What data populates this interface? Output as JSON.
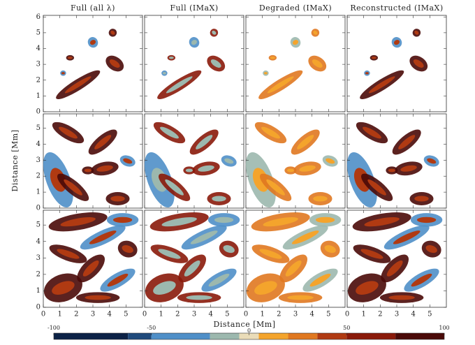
{
  "chart_data": {
    "type": "image-grid",
    "columns": [
      "Full (all λ)",
      "Full (IMaX)",
      "Degraded (IMaX)",
      "Reconstructed (IMaX)"
    ],
    "xlabel": "Distance [Mm]",
    "ylabel": "Distance [Mm]",
    "xlim": [
      0,
      6
    ],
    "xticks": [
      0,
      1,
      2,
      3,
      4,
      5
    ],
    "rows": [
      {
        "ylim": [
          0,
          6.1
        ],
        "yticks": [
          0,
          1,
          2,
          3,
          4,
          5,
          6
        ]
      },
      {
        "ylim": [
          0,
          5.9
        ],
        "yticks": [
          0,
          1,
          2,
          3,
          4,
          5
        ]
      },
      {
        "ylim": [
          0,
          5.9
        ],
        "yticks": [
          0,
          1,
          2,
          3,
          4,
          5
        ]
      }
    ],
    "colorbar": {
      "clim": [
        -100,
        100
      ],
      "ticks": [
        -100,
        -50,
        0,
        50,
        100
      ],
      "bounds": [
        -100,
        -62,
        -50,
        -20,
        -5,
        5,
        20,
        35,
        50,
        75,
        100
      ],
      "colors": [
        "#0c2246",
        "#1f4a7c",
        "#4f8fc8",
        "#9cb8ae",
        "#eadcb8",
        "#f4a42c",
        "#e07820",
        "#b03a12",
        "#8a1a0a",
        "#4a0a08"
      ]
    }
  }
}
